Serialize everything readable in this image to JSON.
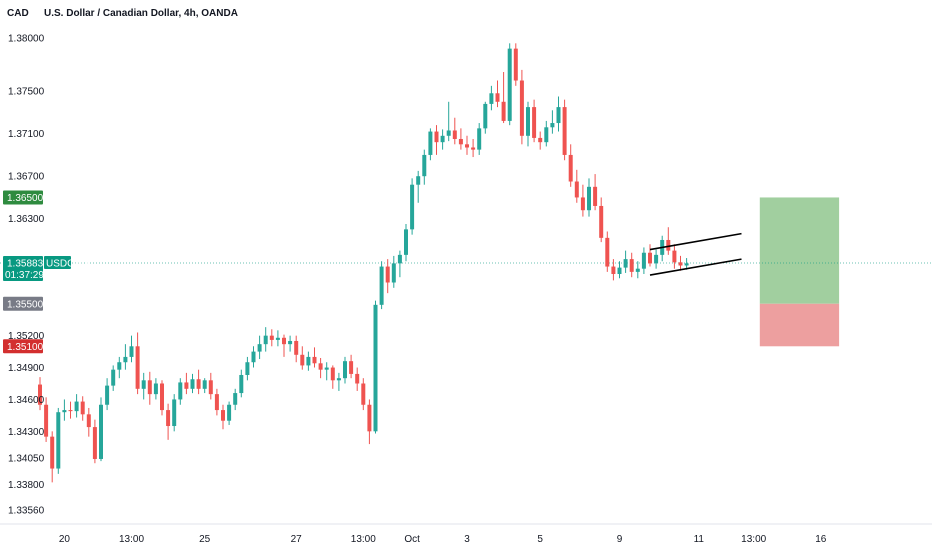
{
  "header": {
    "symbol_short": "CAD",
    "title": "U.S. Dollar / Canadian Dollar, 4h, OANDA"
  },
  "colors": {
    "up": "#26a69a",
    "down": "#ef5350",
    "wick": "#787b86",
    "current_price_tag": "#089981",
    "target_tag": "#2e8b3f",
    "entry_tag": "#787b86",
    "stop_tag": "#d32f2f",
    "profit_zone": "#9ccc9a",
    "loss_zone": "#ec9a9a",
    "channel": "#000000"
  },
  "chart_data": {
    "type": "candlestick",
    "price_axis": {
      "ticks": [
        "1.38000",
        "1.37500",
        "1.37100",
        "1.36700",
        "1.36300",
        "1.35200",
        "1.34900",
        "1.34600",
        "1.34300",
        "1.34050",
        "1.33800",
        "1.33560"
      ],
      "tick_values": [
        1.38,
        1.375,
        1.371,
        1.367,
        1.363,
        1.352,
        1.349,
        1.346,
        1.343,
        1.3405,
        1.338,
        1.3356
      ]
    },
    "time_axis": {
      "labels": [
        "20",
        "13:00",
        "25",
        "27",
        "13:00",
        "Oct",
        "3",
        "5",
        "9",
        "11",
        "13:00",
        "16"
      ],
      "label_index": [
        4,
        15,
        27,
        42,
        53,
        61,
        70,
        82,
        95,
        108,
        117,
        128
      ]
    },
    "price_tags": [
      {
        "name": "target",
        "price": 1.365,
        "label": "1.36500",
        "color_key": "target_tag"
      },
      {
        "name": "current",
        "price": 1.35883,
        "label": "1.35883",
        "symbol": "USDCAD",
        "countdown": "01:37:29",
        "color_key": "current_price_tag"
      },
      {
        "name": "entry",
        "price": 1.355,
        "label": "1.35500",
        "color_key": "entry_tag"
      },
      {
        "name": "stop",
        "price": 1.351,
        "label": "1.35100",
        "color_key": "stop_tag"
      }
    ],
    "position_tool": {
      "start_index": 118,
      "end_index": 131,
      "entry": 1.355,
      "target": 1.365,
      "stop": 1.351
    },
    "channel": {
      "upper": [
        [
          100,
          1.3601
        ],
        [
          115,
          1.3616
        ]
      ],
      "lower": [
        [
          100,
          1.3577
        ],
        [
          115,
          1.3592
        ]
      ]
    },
    "ohlc": [
      [
        1.3474,
        1.3481,
        1.345,
        1.3455
      ],
      [
        1.3455,
        1.3462,
        1.342,
        1.3425
      ],
      [
        1.3425,
        1.343,
        1.3382,
        1.3395
      ],
      [
        1.3395,
        1.3452,
        1.339,
        1.3448
      ],
      [
        1.3448,
        1.346,
        1.344,
        1.345
      ],
      [
        1.345,
        1.3458,
        1.3442,
        1.3449
      ],
      [
        1.3449,
        1.3465,
        1.3443,
        1.3458
      ],
      [
        1.3458,
        1.3463,
        1.344,
        1.3446
      ],
      [
        1.3446,
        1.3452,
        1.3425,
        1.3434
      ],
      [
        1.3434,
        1.3441,
        1.34,
        1.3404
      ],
      [
        1.3404,
        1.3462,
        1.3402,
        1.3455
      ],
      [
        1.3455,
        1.348,
        1.345,
        1.3473
      ],
      [
        1.3473,
        1.3492,
        1.3468,
        1.3488
      ],
      [
        1.3488,
        1.35,
        1.348,
        1.3495
      ],
      [
        1.3495,
        1.3512,
        1.3488,
        1.35
      ],
      [
        1.35,
        1.352,
        1.3495,
        1.351
      ],
      [
        1.351,
        1.3523,
        1.3465,
        1.347
      ],
      [
        1.347,
        1.3485,
        1.346,
        1.3478
      ],
      [
        1.3478,
        1.3486,
        1.3455,
        1.3465
      ],
      [
        1.3465,
        1.348,
        1.346,
        1.3475
      ],
      [
        1.3475,
        1.3478,
        1.3445,
        1.345
      ],
      [
        1.345,
        1.3456,
        1.3422,
        1.3435
      ],
      [
        1.3435,
        1.3465,
        1.343,
        1.346
      ],
      [
        1.346,
        1.348,
        1.3455,
        1.3476
      ],
      [
        1.3476,
        1.3485,
        1.3465,
        1.347
      ],
      [
        1.347,
        1.3484,
        1.3466,
        1.3479
      ],
      [
        1.3479,
        1.3488,
        1.3465,
        1.347
      ],
      [
        1.347,
        1.348,
        1.3466,
        1.3478
      ],
      [
        1.3478,
        1.3485,
        1.346,
        1.3465
      ],
      [
        1.3465,
        1.347,
        1.3445,
        1.345
      ],
      [
        1.345,
        1.3455,
        1.3432,
        1.344
      ],
      [
        1.344,
        1.3458,
        1.3436,
        1.3455
      ],
      [
        1.3455,
        1.347,
        1.345,
        1.3466
      ],
      [
        1.3466,
        1.3488,
        1.3462,
        1.3483
      ],
      [
        1.3483,
        1.35,
        1.3478,
        1.3495
      ],
      [
        1.3495,
        1.351,
        1.349,
        1.3505
      ],
      [
        1.3505,
        1.352,
        1.3498,
        1.3512
      ],
      [
        1.3512,
        1.3528,
        1.3505,
        1.352
      ],
      [
        1.352,
        1.3526,
        1.351,
        1.3516
      ],
      [
        1.3516,
        1.3525,
        1.351,
        1.3518
      ],
      [
        1.3518,
        1.3521,
        1.35,
        1.3512
      ],
      [
        1.3512,
        1.352,
        1.3505,
        1.3515
      ],
      [
        1.3515,
        1.352,
        1.3495,
        1.3502
      ],
      [
        1.3502,
        1.351,
        1.3488,
        1.3492
      ],
      [
        1.3492,
        1.3505,
        1.3487,
        1.35
      ],
      [
        1.35,
        1.3509,
        1.349,
        1.3494
      ],
      [
        1.3494,
        1.3499,
        1.348,
        1.3488
      ],
      [
        1.3488,
        1.3495,
        1.3478,
        1.349
      ],
      [
        1.349,
        1.3492,
        1.347,
        1.3478
      ],
      [
        1.3478,
        1.3485,
        1.3468,
        1.348
      ],
      [
        1.348,
        1.35,
        1.3475,
        1.3496
      ],
      [
        1.3496,
        1.3502,
        1.348,
        1.3484
      ],
      [
        1.3484,
        1.349,
        1.3468,
        1.3475
      ],
      [
        1.3475,
        1.348,
        1.345,
        1.3455
      ],
      [
        1.3455,
        1.346,
        1.3418,
        1.343
      ],
      [
        1.343,
        1.3553,
        1.3428,
        1.3549
      ],
      [
        1.3549,
        1.359,
        1.3545,
        1.3585
      ],
      [
        1.3585,
        1.3592,
        1.356,
        1.357
      ],
      [
        1.357,
        1.3595,
        1.3565,
        1.3588
      ],
      [
        1.3588,
        1.36,
        1.3575,
        1.3596
      ],
      [
        1.3596,
        1.3625,
        1.359,
        1.362
      ],
      [
        1.362,
        1.3668,
        1.3615,
        1.3662
      ],
      [
        1.3662,
        1.3675,
        1.3645,
        1.367
      ],
      [
        1.367,
        1.3695,
        1.3662,
        1.369
      ],
      [
        1.369,
        1.3715,
        1.3685,
        1.3712
      ],
      [
        1.3712,
        1.3718,
        1.369,
        1.3702
      ],
      [
        1.3702,
        1.3714,
        1.3695,
        1.3708
      ],
      [
        1.3708,
        1.374,
        1.3703,
        1.3713
      ],
      [
        1.3713,
        1.3725,
        1.37,
        1.3705
      ],
      [
        1.3705,
        1.3715,
        1.3695,
        1.37
      ],
      [
        1.37,
        1.3708,
        1.369,
        1.3697
      ],
      [
        1.3697,
        1.3705,
        1.3688,
        1.3695
      ],
      [
        1.3695,
        1.372,
        1.369,
        1.3715
      ],
      [
        1.3715,
        1.374,
        1.371,
        1.3738
      ],
      [
        1.3738,
        1.3755,
        1.3732,
        1.3748
      ],
      [
        1.3748,
        1.376,
        1.3735,
        1.374
      ],
      [
        1.374,
        1.3768,
        1.372,
        1.3722
      ],
      [
        1.3722,
        1.3795,
        1.3718,
        1.379
      ],
      [
        1.379,
        1.3795,
        1.3755,
        1.376
      ],
      [
        1.376,
        1.377,
        1.37,
        1.3708
      ],
      [
        1.3708,
        1.374,
        1.3698,
        1.3735
      ],
      [
        1.3735,
        1.3742,
        1.3702,
        1.3706
      ],
      [
        1.3706,
        1.3712,
        1.3695,
        1.3702
      ],
      [
        1.3702,
        1.3722,
        1.3698,
        1.3716
      ],
      [
        1.3716,
        1.3732,
        1.371,
        1.372
      ],
      [
        1.372,
        1.3745,
        1.3712,
        1.3735
      ],
      [
        1.3735,
        1.3742,
        1.3685,
        1.369
      ],
      [
        1.369,
        1.37,
        1.366,
        1.3665
      ],
      [
        1.3665,
        1.3676,
        1.3645,
        1.365
      ],
      [
        1.365,
        1.3662,
        1.3632,
        1.3638
      ],
      [
        1.3638,
        1.3668,
        1.3632,
        1.366
      ],
      [
        1.366,
        1.3672,
        1.3638,
        1.3642
      ],
      [
        1.3642,
        1.365,
        1.3608,
        1.3612
      ],
      [
        1.3612,
        1.3618,
        1.358,
        1.3585
      ],
      [
        1.3585,
        1.3592,
        1.3572,
        1.3578
      ],
      [
        1.3578,
        1.359,
        1.3574,
        1.3584
      ],
      [
        1.3584,
        1.36,
        1.3579,
        1.3592
      ],
      [
        1.3592,
        1.3598,
        1.3575,
        1.358
      ],
      [
        1.358,
        1.359,
        1.3574,
        1.3583
      ],
      [
        1.3583,
        1.3603,
        1.3578,
        1.3598
      ],
      [
        1.3598,
        1.3606,
        1.3585,
        1.3588
      ],
      [
        1.3588,
        1.3601,
        1.3583,
        1.3596
      ],
      [
        1.3596,
        1.3614,
        1.359,
        1.361
      ],
      [
        1.361,
        1.3622,
        1.3596,
        1.36
      ],
      [
        1.36,
        1.3606,
        1.3583,
        1.3589
      ],
      [
        1.3589,
        1.3595,
        1.3581,
        1.3586
      ],
      [
        1.3586,
        1.3593,
        1.3582,
        1.3588
      ]
    ]
  }
}
